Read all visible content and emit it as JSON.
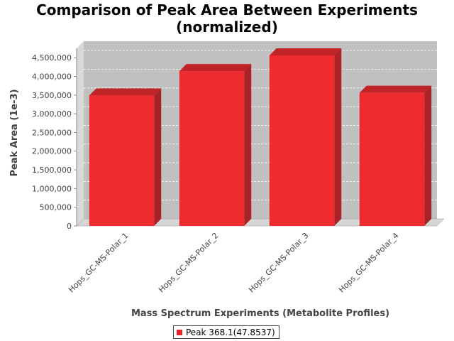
{
  "chart_data": {
    "type": "bar",
    "title": "Comparison of Peak Area Between Experiments",
    "subtitle": "(normalized)",
    "xlabel": "Mass Spectrum Experiments (Metabolite Profiles)",
    "ylabel": "Peak Area (1e-3)",
    "categories": [
      "Hops_GC-MS-Polar_1",
      "Hops_GC-MS-Polar_2",
      "Hops_GC-MS-Polar_3",
      "Hops_GC-MS-Polar_4"
    ],
    "series": [
      {
        "name": "Peak 368.1(47.8537)",
        "values": [
          3490000,
          4140000,
          4560000,
          3560000
        ],
        "color": "#f02b30"
      }
    ],
    "ylim": [
      0,
      4750000
    ],
    "yticks": [
      0,
      500000,
      1000000,
      1500000,
      2000000,
      2500000,
      3000000,
      3500000,
      4000000,
      4500000
    ],
    "ytick_labels": [
      "0",
      "500,000",
      "1,000,000",
      "1,500,000",
      "2,000,000",
      "2,500,000",
      "3,000,000",
      "3,500,000",
      "4,000,000",
      "4,500,000"
    ],
    "grid": true,
    "style": "3d-bar",
    "legend_position": "bottom-center"
  },
  "colors": {
    "plot_background": "#c0c0c0",
    "wall_side": "#d8d8d8",
    "floor": "#d6d6d6",
    "bar_front": "#f02b30",
    "bar_side": "#a82226",
    "bar_top": "#c02428"
  }
}
